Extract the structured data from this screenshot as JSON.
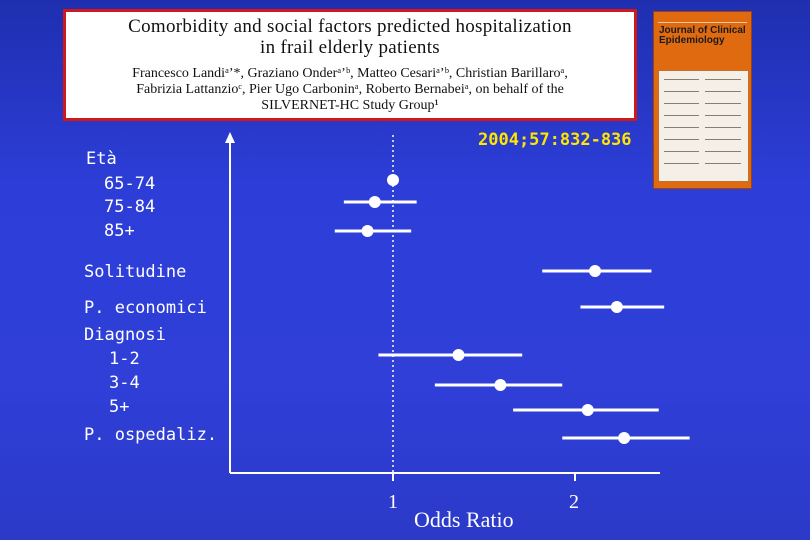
{
  "paper": {
    "title_line1": "Comorbidity and social factors predicted hospitalization",
    "title_line2": "in frail elderly patients",
    "authors_line1": "Francesco Landiᵃ’*, Graziano Onderᵃ’ᵇ, Matteo Cesariᵃ’ᵇ, Christian Barillaroᵃ,",
    "authors_line2": "Fabrizia Lattanzioᶜ, Pier Ugo Carboninᵃ, Roberto Bernabeiᵃ, on behalf of the",
    "authors_line3": "SILVERNET-HC Study Group¹"
  },
  "journal": {
    "title": "Journal of Clinical Epidemiology",
    "color": "#e06a10"
  },
  "citation": "2004;57:832-836",
  "row_labels": {
    "eta": "Età",
    "eta_65": "65-74",
    "eta_75": "75-84",
    "eta_85": "85+",
    "solitudine": "Solitudine",
    "economici": "P. economici",
    "diagnosi": "Diagnosi",
    "d12": "1-2",
    "d34": "3-4",
    "d5": "5+",
    "ospedaliz": "P. ospedaliz."
  },
  "chart_data": {
    "type": "scatter",
    "xlabel": "Odds Ratio",
    "x_ticks": [
      "1",
      "2"
    ],
    "reference_line": 1,
    "points": [
      {
        "row": "65-74",
        "or": 1.0,
        "ci": null
      },
      {
        "row": "75-84",
        "or": 0.9,
        "ci": [
          0.73,
          1.13
        ]
      },
      {
        "row": "85+",
        "or": 0.86,
        "ci": [
          0.68,
          1.1
        ]
      },
      {
        "row": "Solitudine",
        "or": 2.11,
        "ci": [
          1.82,
          2.42
        ]
      },
      {
        "row": "P. economici",
        "or": 2.23,
        "ci": [
          2.03,
          2.49
        ]
      },
      {
        "row": "1-2",
        "or": 1.36,
        "ci": [
          0.92,
          1.71
        ]
      },
      {
        "row": "3-4",
        "or": 1.59,
        "ci": [
          1.23,
          1.93
        ]
      },
      {
        "row": "5+",
        "or": 2.07,
        "ci": [
          1.66,
          2.46
        ]
      },
      {
        "row": "P. ospedaliz.",
        "or": 2.27,
        "ci": [
          1.93,
          2.63
        ]
      }
    ]
  }
}
